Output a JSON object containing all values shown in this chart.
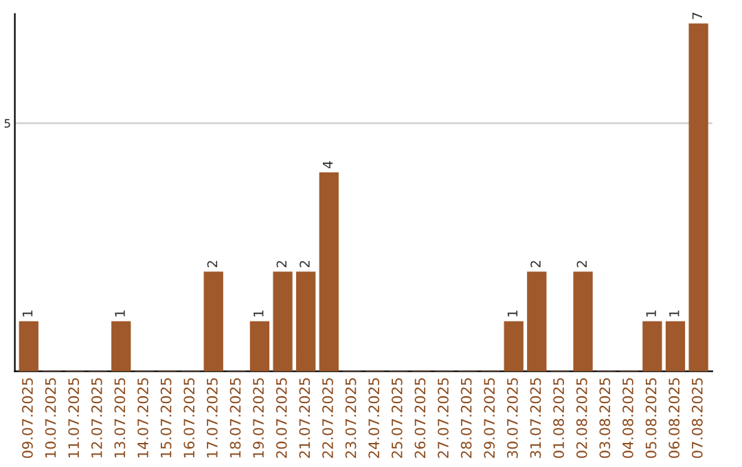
{
  "chart_data": {
    "type": "bar",
    "categories": [
      "09.07.2025",
      "10.07.2025",
      "11.07.2025",
      "12.07.2025",
      "13.07.2025",
      "14.07.2025",
      "15.07.2025",
      "16.07.2025",
      "17.07.2025",
      "18.07.2025",
      "19.07.2025",
      "20.07.2025",
      "21.07.2025",
      "22.07.2025",
      "23.07.2025",
      "24.07.2025",
      "25.07.2025",
      "26.07.2025",
      "27.07.2025",
      "28.07.2025",
      "29.07.2025",
      "30.07.2025",
      "31.07.2025",
      "01.08.2025",
      "02.08.2025",
      "03.08.2025",
      "04.08.2025",
      "05.08.2025",
      "06.08.2025",
      "07.08.2025"
    ],
    "values": [
      1,
      0,
      0,
      0,
      1,
      0,
      0,
      0,
      2,
      0,
      1,
      2,
      2,
      4,
      0,
      0,
      0,
      0,
      0,
      0,
      0,
      1,
      2,
      0,
      2,
      0,
      0,
      1,
      1,
      7
    ],
    "value_labels": [
      "1",
      null,
      null,
      null,
      "1",
      null,
      null,
      null,
      "2",
      null,
      "1",
      "2",
      "2",
      "4",
      null,
      null,
      null,
      null,
      null,
      null,
      null,
      "1",
      "2",
      null,
      "2",
      null,
      null,
      "1",
      "1",
      "7"
    ],
    "color": "#a0592b",
    "ylim": [
      0,
      7.2
    ],
    "yticks": [
      5
    ],
    "grid": "y"
  }
}
